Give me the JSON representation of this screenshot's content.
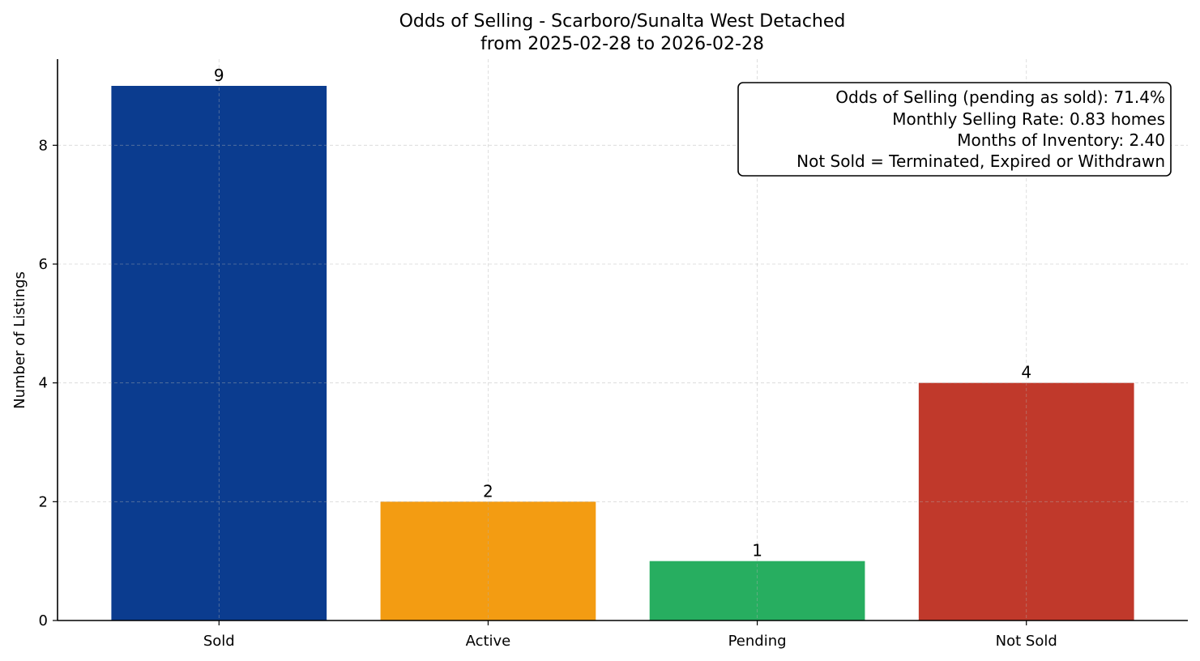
{
  "chart_data": {
    "type": "bar",
    "title": "Odds of Selling - Scarboro/Sunalta West Detached",
    "subtitle": "from 2025-02-28 to 2026-02-28",
    "xlabel": "",
    "ylabel": "Number of Listings",
    "categories": [
      "Sold",
      "Active",
      "Pending",
      "Not Sold"
    ],
    "values": [
      9,
      2,
      1,
      4
    ],
    "colors": [
      "#0b3c8f",
      "#f39c12",
      "#27ae60",
      "#c0392b"
    ],
    "ylim": [
      0,
      9.45
    ],
    "yticks": [
      0,
      2,
      4,
      6,
      8
    ],
    "grid": true,
    "annotation": {
      "placement": "top-right",
      "lines": [
        "Odds of Selling (pending as sold): 71.4%",
        "Monthly Selling Rate: 0.83 homes",
        "Months of Inventory: 2.40",
        "Not Sold = Terminated, Expired or Withdrawn"
      ]
    }
  }
}
